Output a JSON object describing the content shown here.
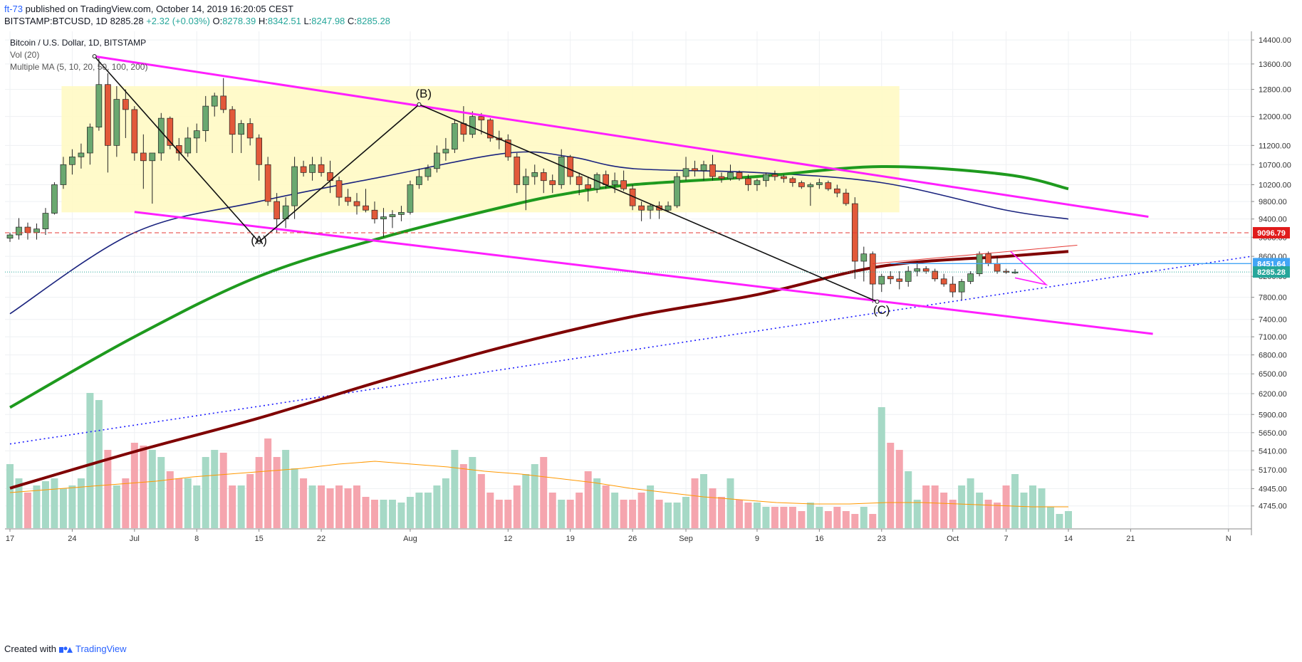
{
  "header": {
    "user": "ft-73",
    "published_text": "published on TradingView.com, October 14, 2019 16:20:05 CEST",
    "symbol_line": "BITSTAMP:BTCUSD, 1D",
    "last": "8285.28",
    "change": "+2.32 (+0.03%)",
    "o_label": "O:",
    "o_value": "8278.39",
    "h_label": "H:",
    "h_value": "8342.51",
    "l_label": "L:",
    "l_value": "8247.98",
    "c_label": "C:",
    "c_value": "8285.28"
  },
  "legend": {
    "title": "Bitcoin / U.S. Dollar, 1D, BITSTAMP",
    "vol": "Vol (20)",
    "ma": "Multiple MA (5, 10, 20, 50, 100, 200)"
  },
  "footer": {
    "created_with": "Created with",
    "brand": "TradingView"
  },
  "colors": {
    "up": "#6aa870",
    "down": "#e2593a",
    "vol_up": "#a6d9c6",
    "vol_down": "#f5a5ae",
    "channel": "#ff1fff",
    "box": "#fff9c4",
    "ma_green": "#1e9a1e",
    "ma_navy": "#1a237e",
    "ma_maroon": "#7f0000",
    "resistance": "#e53935",
    "level_blue": "#42a5f5"
  },
  "chart_data": {
    "type": "candlestick",
    "title": "Bitcoin / U.S. Dollar, 1D, BITSTAMP",
    "ylim": [
      4500,
      14700
    ],
    "y_ticks": [
      14400,
      13600,
      12800,
      12000,
      11200,
      10700,
      10200,
      9800,
      9400,
      9000,
      8600,
      8200,
      7800,
      7400,
      7100,
      6800,
      6500,
      6200,
      5900,
      5650,
      5410,
      5170,
      4945,
      4745
    ],
    "x_ticks": [
      {
        "label": "17",
        "day": 0
      },
      {
        "label": "24",
        "day": 7
      },
      {
        "label": "Jul",
        "day": 14
      },
      {
        "label": "8",
        "day": 21
      },
      {
        "label": "15",
        "day": 28
      },
      {
        "label": "22",
        "day": 35
      },
      {
        "label": "Aug",
        "day": 45
      },
      {
        "label": "12",
        "day": 56
      },
      {
        "label": "19",
        "day": 63
      },
      {
        "label": "26",
        "day": 70
      },
      {
        "label": "Sep",
        "day": 76
      },
      {
        "label": "9",
        "day": 84
      },
      {
        "label": "16",
        "day": 91
      },
      {
        "label": "23",
        "day": 98
      },
      {
        "label": "Oct",
        "day": 106
      },
      {
        "label": "7",
        "day": 112
      },
      {
        "label": "14",
        "day": 119
      },
      {
        "label": "21",
        "day": 126
      },
      {
        "label": "N",
        "day": 137
      }
    ],
    "start_date": "2019-06-17",
    "candles": [
      [
        8980,
        9100,
        8900,
        9050
      ],
      [
        9050,
        9420,
        8950,
        9220
      ],
      [
        9220,
        9320,
        8950,
        9100
      ],
      [
        9100,
        9300,
        8950,
        9180
      ],
      [
        9180,
        9650,
        9050,
        9530
      ],
      [
        9530,
        10260,
        9500,
        10200
      ],
      [
        10200,
        10900,
        10100,
        10700
      ],
      [
        10700,
        11100,
        10450,
        10900
      ],
      [
        10900,
        11250,
        10600,
        11000
      ],
      [
        11000,
        11800,
        10700,
        11700
      ],
      [
        11700,
        13800,
        11600,
        12950
      ],
      [
        12950,
        13300,
        10500,
        11200
      ],
      [
        11200,
        12900,
        10900,
        12500
      ],
      [
        12500,
        12800,
        11400,
        12200
      ],
      [
        12200,
        12300,
        10800,
        11000
      ],
      [
        11000,
        11500,
        10100,
        10800
      ],
      [
        10800,
        11000,
        9750,
        11000
      ],
      [
        11000,
        12100,
        10800,
        11950
      ],
      [
        11950,
        12000,
        11100,
        11200
      ],
      [
        11200,
        11400,
        10800,
        11000
      ],
      [
        11000,
        11700,
        10900,
        11400
      ],
      [
        11400,
        11800,
        11000,
        11600
      ],
      [
        11600,
        12600,
        11300,
        12300
      ],
      [
        12300,
        12700,
        12000,
        12600
      ],
      [
        12600,
        13150,
        12100,
        12200
      ],
      [
        12200,
        12300,
        11000,
        11500
      ],
      [
        11500,
        11900,
        11000,
        11800
      ],
      [
        11800,
        11950,
        11200,
        11400
      ],
      [
        11400,
        11500,
        10300,
        10700
      ],
      [
        10700,
        10900,
        9700,
        9800
      ],
      [
        9800,
        10000,
        9100,
        9400
      ],
      [
        9400,
        9900,
        9200,
        9700
      ],
      [
        9700,
        10900,
        9400,
        10650
      ],
      [
        10650,
        10800,
        10400,
        10500
      ],
      [
        10500,
        10900,
        10300,
        10700
      ],
      [
        10700,
        10900,
        10400,
        10500
      ],
      [
        10500,
        10800,
        10000,
        10300
      ],
      [
        10300,
        10400,
        9700,
        9900
      ],
      [
        9900,
        10100,
        9700,
        9800
      ],
      [
        9800,
        10000,
        9500,
        9700
      ],
      [
        9700,
        10100,
        9550,
        9600
      ],
      [
        9600,
        9800,
        9300,
        9400
      ],
      [
        9400,
        9650,
        9000,
        9450
      ],
      [
        9450,
        9600,
        9200,
        9500
      ],
      [
        9500,
        9700,
        9350,
        9550
      ],
      [
        9550,
        10300,
        9500,
        10200
      ],
      [
        10200,
        10600,
        10100,
        10400
      ],
      [
        10400,
        10700,
        10300,
        10600
      ],
      [
        10600,
        11200,
        10500,
        11000
      ],
      [
        11000,
        11400,
        10800,
        11100
      ],
      [
        11100,
        11900,
        11000,
        11800
      ],
      [
        11800,
        12300,
        11300,
        11500
      ],
      [
        11500,
        12150,
        11400,
        12000
      ],
      [
        12000,
        12100,
        11500,
        11900
      ],
      [
        11900,
        11950,
        11300,
        11400
      ],
      [
        11400,
        11600,
        11100,
        11350
      ],
      [
        11350,
        11500,
        10800,
        10900
      ],
      [
        10900,
        11000,
        10000,
        10200
      ],
      [
        10200,
        10600,
        9600,
        10400
      ],
      [
        10400,
        10700,
        10200,
        10500
      ],
      [
        10500,
        10600,
        10000,
        10300
      ],
      [
        10300,
        10450,
        10000,
        10200
      ],
      [
        10200,
        11100,
        10100,
        10900
      ],
      [
        10900,
        10950,
        10200,
        10400
      ],
      [
        10400,
        10500,
        9950,
        10200
      ],
      [
        10200,
        10400,
        9800,
        10100
      ],
      [
        10100,
        10500,
        10000,
        10450
      ],
      [
        10450,
        10550,
        10100,
        10200
      ],
      [
        10200,
        10500,
        10000,
        10300
      ],
      [
        10300,
        10550,
        10050,
        10100
      ],
      [
        10100,
        10200,
        9600,
        9700
      ],
      [
        9700,
        9800,
        9350,
        9600
      ],
      [
        9600,
        9750,
        9400,
        9700
      ],
      [
        9700,
        9800,
        9400,
        9600
      ],
      [
        9600,
        9800,
        9550,
        9700
      ],
      [
        9700,
        10500,
        9650,
        10400
      ],
      [
        10400,
        10900,
        10300,
        10600
      ],
      [
        10600,
        10800,
        10400,
        10550
      ],
      [
        10550,
        10800,
        10300,
        10700
      ],
      [
        10700,
        10950,
        10300,
        10400
      ],
      [
        10400,
        10500,
        10250,
        10350
      ],
      [
        10350,
        10700,
        10300,
        10500
      ],
      [
        10500,
        10550,
        10300,
        10350
      ],
      [
        10350,
        10450,
        10050,
        10200
      ],
      [
        10200,
        10350,
        10050,
        10300
      ],
      [
        10300,
        10500,
        10150,
        10450
      ],
      [
        10450,
        10550,
        10300,
        10400
      ],
      [
        10400,
        10450,
        10250,
        10350
      ],
      [
        10350,
        10400,
        10150,
        10250
      ],
      [
        10250,
        10300,
        10100,
        10150
      ],
      [
        10150,
        10250,
        9700,
        10200
      ],
      [
        10200,
        10350,
        10100,
        10250
      ],
      [
        10250,
        10300,
        10050,
        10100
      ],
      [
        10100,
        10200,
        9900,
        10000
      ],
      [
        10000,
        10100,
        9700,
        9750
      ],
      [
        9750,
        9900,
        8150,
        8500
      ],
      [
        8500,
        8800,
        8100,
        8650
      ],
      [
        8650,
        8700,
        7700,
        8050
      ],
      [
        8050,
        8250,
        7900,
        8200
      ],
      [
        8200,
        8300,
        8050,
        8150
      ],
      [
        8150,
        8300,
        7950,
        8100
      ],
      [
        8100,
        8400,
        8000,
        8300
      ],
      [
        8300,
        8500,
        8200,
        8350
      ],
      [
        8350,
        8400,
        8250,
        8300
      ],
      [
        8300,
        8350,
        8100,
        8150
      ],
      [
        8150,
        8250,
        8000,
        8050
      ],
      [
        8050,
        8200,
        7800,
        7900
      ],
      [
        7900,
        8150,
        7750,
        8100
      ],
      [
        8100,
        8300,
        8050,
        8250
      ],
      [
        8250,
        8700,
        8200,
        8650
      ],
      [
        8650,
        8700,
        8400,
        8450
      ],
      [
        8450,
        8600,
        8250,
        8300
      ],
      [
        8300,
        8350,
        8250,
        8280
      ],
      [
        8278.39,
        8342.51,
        8247.98,
        8285.28
      ]
    ],
    "moving_averages": [
      {
        "name": "MA 50",
        "color": "#1a237e",
        "points": [
          [
            0,
            7500
          ],
          [
            14,
            9100
          ],
          [
            28,
            9800
          ],
          [
            42,
            10400
          ],
          [
            56,
            11000
          ],
          [
            63,
            10900
          ],
          [
            70,
            10600
          ],
          [
            84,
            10500
          ],
          [
            98,
            10250
          ],
          [
            112,
            9600
          ],
          [
            119,
            9400
          ]
        ]
      },
      {
        "name": "MA 100",
        "color": "#1e9a1e",
        "points": [
          [
            0,
            6000
          ],
          [
            14,
            7100
          ],
          [
            28,
            8200
          ],
          [
            42,
            9000
          ],
          [
            56,
            9700
          ],
          [
            63,
            10000
          ],
          [
            70,
            10200
          ],
          [
            84,
            10400
          ],
          [
            98,
            10650
          ],
          [
            112,
            10450
          ],
          [
            119,
            10100
          ]
        ]
      },
      {
        "name": "MA 200",
        "color": "#7f0000",
        "points": [
          [
            0,
            4950
          ],
          [
            14,
            5400
          ],
          [
            28,
            5850
          ],
          [
            42,
            6400
          ],
          [
            56,
            6950
          ],
          [
            70,
            7450
          ],
          [
            84,
            7850
          ],
          [
            98,
            8400
          ],
          [
            112,
            8600
          ],
          [
            119,
            8700
          ]
        ]
      }
    ],
    "volume_scale": "relative",
    "volumes": [
      0.45,
      0.35,
      0.25,
      0.3,
      0.33,
      0.35,
      0.28,
      0.3,
      0.35,
      0.95,
      0.9,
      0.55,
      0.3,
      0.35,
      0.6,
      0.58,
      0.55,
      0.5,
      0.4,
      0.35,
      0.35,
      0.3,
      0.5,
      0.55,
      0.53,
      0.3,
      0.3,
      0.38,
      0.5,
      0.63,
      0.5,
      0.55,
      0.42,
      0.35,
      0.3,
      0.3,
      0.28,
      0.3,
      0.28,
      0.3,
      0.22,
      0.2,
      0.2,
      0.2,
      0.18,
      0.22,
      0.25,
      0.25,
      0.3,
      0.35,
      0.55,
      0.45,
      0.5,
      0.38,
      0.25,
      0.2,
      0.2,
      0.3,
      0.38,
      0.45,
      0.5,
      0.25,
      0.2,
      0.2,
      0.25,
      0.4,
      0.35,
      0.3,
      0.25,
      0.2,
      0.2,
      0.25,
      0.3,
      0.2,
      0.18,
      0.18,
      0.22,
      0.35,
      0.38,
      0.28,
      0.22,
      0.35,
      0.2,
      0.18,
      0.18,
      0.15,
      0.15,
      0.15,
      0.15,
      0.12,
      0.18,
      0.15,
      0.12,
      0.15,
      0.12,
      0.1,
      0.15,
      0.1,
      0.85,
      0.6,
      0.55,
      0.4,
      0.2,
      0.3,
      0.3,
      0.25,
      0.2,
      0.3,
      0.35,
      0.25,
      0.2,
      0.18,
      0.3,
      0.38,
      0.25,
      0.3,
      0.28,
      0.15,
      0.1,
      0.12
    ],
    "volume_ma": [
      0.25,
      0.27,
      0.29,
      0.31,
      0.33,
      0.36,
      0.38,
      0.4,
      0.42,
      0.45,
      0.47,
      0.45,
      0.43,
      0.4,
      0.38,
      0.35,
      0.32,
      0.28,
      0.25,
      0.22,
      0.2,
      0.18,
      0.17,
      0.17,
      0.18,
      0.18,
      0.17,
      0.16,
      0.15,
      0.15
    ],
    "annotations": [
      {
        "text": "(A)",
        "day": 28,
        "price": 8850
      },
      {
        "text": "(B)",
        "day": 46.5,
        "price": 12550
      },
      {
        "text": "(C)",
        "day": 98,
        "price": 7500
      }
    ],
    "levels": [
      {
        "price": 9096.79,
        "label": "9096.79",
        "style": "dashed",
        "color": "#e53935"
      },
      {
        "price": 8451.64,
        "label": "8451.64",
        "style": "solid",
        "color": "#42a5f5"
      },
      {
        "price": 8285.28,
        "label": "8285.28",
        "style": "dotted",
        "color": "#26a69a"
      }
    ]
  }
}
